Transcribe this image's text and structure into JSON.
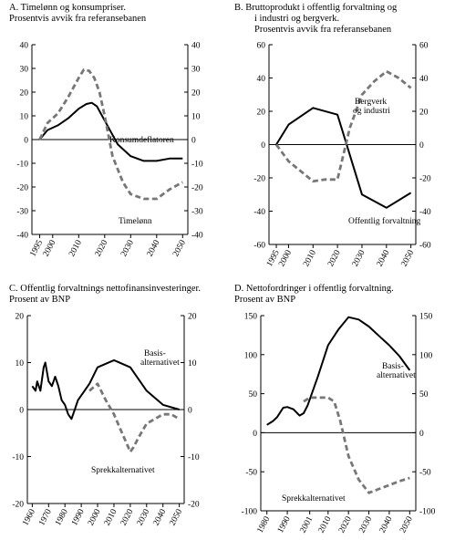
{
  "chart_data": [
    {
      "id": "A",
      "type": "line",
      "title": [
        "A.  Timelønn og konsumpriser.",
        "Prosentvis avvik fra referansebanen"
      ],
      "xlabel": "",
      "ylabel": "",
      "xlim": [
        1992,
        2052
      ],
      "ylim": [
        -40,
        40
      ],
      "yticks": [
        -40,
        -30,
        -20,
        -10,
        0,
        10,
        20,
        30,
        40
      ],
      "xticks": [
        1995,
        2000,
        2010,
        2020,
        2030,
        2040,
        2050
      ],
      "zero_line": true,
      "grid": false,
      "series": [
        {
          "name": "Konsumdeflatoren",
          "style": "solid",
          "color": "#000000",
          "x": [
            1995,
            1998,
            2002,
            2006,
            2010,
            2013,
            2015,
            2017,
            2020,
            2025,
            2030,
            2035,
            2040,
            2045,
            2050
          ],
          "y": [
            0,
            4,
            6,
            9,
            13,
            15,
            15.5,
            14,
            8,
            -2,
            -7,
            -9,
            -9,
            -8,
            -8
          ]
        },
        {
          "name": "Timelønn",
          "style": "dashed",
          "color": "#777777",
          "x": [
            1995,
            1998,
            2002,
            2006,
            2010,
            2012,
            2014,
            2016,
            2018,
            2020,
            2023,
            2027,
            2030,
            2035,
            2040,
            2045,
            2050
          ],
          "y": [
            0,
            7,
            11,
            18,
            26,
            29.5,
            29,
            26,
            20,
            10,
            -7,
            -18,
            -23,
            -25,
            -25,
            -21,
            -18
          ]
        }
      ]
    },
    {
      "id": "B",
      "type": "line",
      "title": [
        "B.  Bruttoprodukt i offentlig forvaltning og",
        "i industri og bergverk.",
        "Prosentvis avvik fra referansebanen"
      ],
      "xlabel": "",
      "ylabel": "",
      "xlim": [
        1992,
        2052
      ],
      "ylim": [
        -60,
        60
      ],
      "yticks": [
        -60,
        -40,
        -20,
        0,
        20,
        40,
        60
      ],
      "xticks": [
        1995,
        2000,
        2010,
        2020,
        2030,
        2040,
        2050
      ],
      "zero_line": true,
      "grid": false,
      "series": [
        {
          "name": "Offentlig forvaltning",
          "style": "solid",
          "color": "#000000",
          "x": [
            1995,
            2000,
            2010,
            2020,
            2030,
            2040,
            2050
          ],
          "y": [
            0,
            12,
            22,
            18,
            -30,
            -38,
            -29
          ]
        },
        {
          "name": "Bergverk og industri",
          "style": "dashed",
          "color": "#777777",
          "x": [
            1995,
            2000,
            2010,
            2015,
            2020,
            2025,
            2030,
            2035,
            2040,
            2045,
            2050
          ],
          "y": [
            0,
            -10,
            -22,
            -21,
            -21,
            10,
            30,
            38,
            44,
            40,
            34
          ]
        }
      ]
    },
    {
      "id": "C",
      "type": "line",
      "title": [
        "C.  Offentlig forvaltnings nettofinansinvesteringer.",
        "Prosent av BNP"
      ],
      "xlabel": "",
      "ylabel": "",
      "xlim": [
        1957,
        2053
      ],
      "ylim": [
        -20,
        20
      ],
      "yticks": [
        -20,
        -10,
        0,
        10,
        20
      ],
      "xticks": [
        1960,
        1970,
        1980,
        1990,
        2000,
        2010,
        2020,
        2030,
        2040,
        2050
      ],
      "zero_line": true,
      "grid": false,
      "series": [
        {
          "name": "Basisalternativet",
          "style": "solid",
          "color": "#000000",
          "x": [
            1960,
            1962,
            1963,
            1965,
            1967,
            1968,
            1970,
            1972,
            1974,
            1976,
            1978,
            1980,
            1982,
            1984,
            1986,
            1988,
            1990,
            1992,
            1995,
            2000,
            2010,
            2020,
            2030,
            2040,
            2050
          ],
          "y": [
            5,
            4,
            6,
            4,
            9,
            10,
            6,
            5,
            7,
            5,
            2,
            1,
            -1,
            -2,
            0,
            2,
            3,
            4,
            5.5,
            9,
            10.5,
            9,
            4,
            1,
            0
          ]
        },
        {
          "name": "Sprekkalternativet",
          "style": "dashed",
          "color": "#777777",
          "x": [
            1995,
            2000,
            2005,
            2010,
            2015,
            2020,
            2022,
            2025,
            2030,
            2035,
            2040,
            2045,
            2050
          ],
          "y": [
            4,
            5.5,
            2,
            -1,
            -5,
            -9,
            -8,
            -6,
            -3,
            -2,
            -1,
            -1,
            -2
          ]
        }
      ]
    },
    {
      "id": "D",
      "type": "line",
      "title": [
        "D.  Nettofordringer i offentlig forvaltning.",
        "Prosent av BNP"
      ],
      "xlabel": "",
      "ylabel": "",
      "xlim": [
        1977,
        2053
      ],
      "ylim": [
        -100,
        150
      ],
      "yticks": [
        -100,
        -50,
        0,
        50,
        100,
        150
      ],
      "xticks": [
        1980,
        1990,
        2001,
        2010,
        2020,
        2030,
        2040,
        2050
      ],
      "zero_line": true,
      "grid": false,
      "series": [
        {
          "name": "Basisalternativet",
          "style": "solid",
          "color": "#000000",
          "x": [
            1980,
            1983,
            1985,
            1988,
            1990,
            1993,
            1996,
            1998,
            2000,
            2005,
            2010,
            2015,
            2020,
            2025,
            2030,
            2035,
            2040,
            2045,
            2050
          ],
          "y": [
            10,
            15,
            20,
            32,
            33,
            30,
            22,
            25,
            35,
            72,
            112,
            132,
            148,
            145,
            136,
            124,
            112,
            98,
            80
          ]
        },
        {
          "name": "Sprekkalternativet",
          "style": "dashed",
          "color": "#777777",
          "x": [
            1998,
            2001,
            2005,
            2010,
            2013,
            2016,
            2020,
            2025,
            2030,
            2035,
            2040,
            2045,
            2050
          ],
          "y": [
            40,
            45,
            45,
            45,
            40,
            15,
            -30,
            -60,
            -77,
            -72,
            -67,
            -62,
            -58
          ]
        }
      ]
    }
  ],
  "annotations": {
    "A": [
      "Konsumdeflatoren",
      "Timelønn"
    ],
    "B": [
      "Bergverk",
      "og industri",
      "Offentlig forvaltning"
    ],
    "C": [
      "Basis-",
      "alternativet",
      "Sprekkalternativet"
    ],
    "D": [
      "Basis-",
      "alternativet",
      "Sprekkalternativet"
    ]
  },
  "colors": {
    "solid": "#000000",
    "dashed": "#777777",
    "axis": "#000000"
  }
}
